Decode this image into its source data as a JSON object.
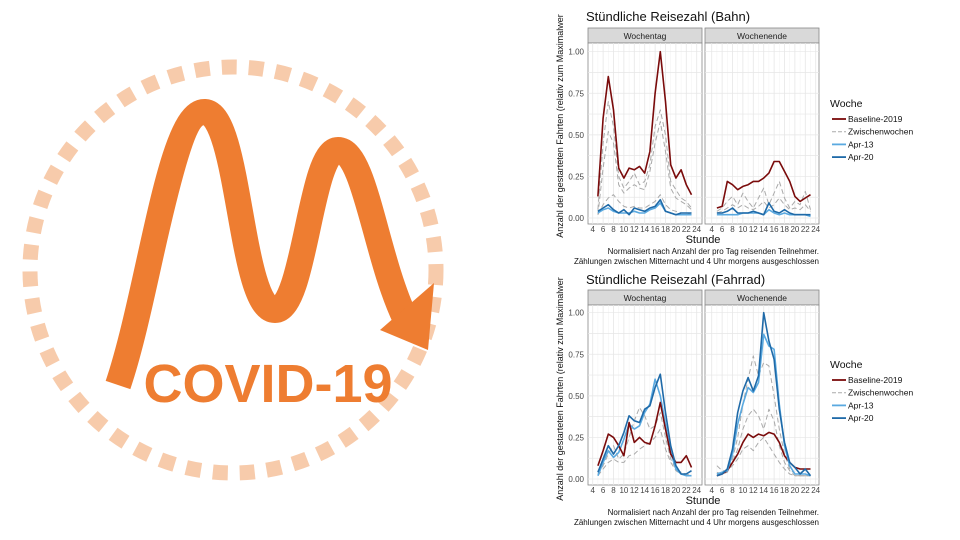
{
  "logo": {
    "text": "COVID-19",
    "arrow_color": "#ee7d31",
    "ring_color": "#f7cbab"
  },
  "legend": {
    "title": "Woche",
    "items": [
      {
        "name": "Baseline-2019",
        "color": "#7a0b0b",
        "dashed": false
      },
      {
        "name": "Zwischenwochen",
        "color": "#aaaaaa",
        "dashed": true
      },
      {
        "name": "Apr-13",
        "color": "#5aa9e0",
        "dashed": false
      },
      {
        "name": "Apr-20",
        "color": "#1f6aa8",
        "dashed": false
      }
    ]
  },
  "chart_data": [
    {
      "type": "line",
      "title": "Stündliche Reisezahl (Bahn)",
      "xlabel": "Stunde",
      "ylabel": "Anzahl der gestarteten Fahrten (relativ zum Maximalwer",
      "caption": [
        "Normalisiert nach Anzahl der pro Tag reisenden Teilnehmer.",
        "Zählungen zwischen Mitternacht und 4 Uhr morgens ausgeschlossen"
      ],
      "x": [
        5,
        6,
        7,
        8,
        9,
        10,
        11,
        12,
        13,
        14,
        15,
        16,
        17,
        18,
        19,
        20,
        21,
        22,
        23
      ],
      "xlim": [
        4,
        24
      ],
      "ylim": [
        0,
        1
      ],
      "xticks": [
        "4",
        "6",
        "8",
        "10",
        "12",
        "14",
        "16",
        "18",
        "20",
        "22",
        "24"
      ],
      "yticks": [
        "0.00",
        "0.25",
        "0.50",
        "0.75",
        "1.00"
      ],
      "facets": [
        {
          "name": "Wochentag",
          "series": [
            {
              "name": "Zwischenwochen",
              "values": [
                0.05,
                0.45,
                0.7,
                0.55,
                0.25,
                0.18,
                0.22,
                0.27,
                0.2,
                0.22,
                0.32,
                0.55,
                0.65,
                0.5,
                0.22,
                0.17,
                0.12,
                0.1,
                0.06
              ]
            },
            {
              "name": "Zwischenwochen",
              "values": [
                0.02,
                0.3,
                0.52,
                0.45,
                0.2,
                0.15,
                0.18,
                0.2,
                0.18,
                0.17,
                0.28,
                0.45,
                0.58,
                0.4,
                0.18,
                0.12,
                0.1,
                0.08,
                0.05
              ]
            },
            {
              "name": "Zwischenwochen",
              "values": [
                0.02,
                0.08,
                0.12,
                0.14,
                0.1,
                0.07,
                0.06,
                0.07,
                0.06,
                0.06,
                0.08,
                0.1,
                0.14,
                0.08,
                0.05,
                0.04,
                0.03,
                0.03,
                0.02
              ]
            },
            {
              "name": "Apr-13",
              "values": [
                0.03,
                0.05,
                0.06,
                0.04,
                0.03,
                0.03,
                0.03,
                0.04,
                0.03,
                0.03,
                0.05,
                0.06,
                0.09,
                0.04,
                0.03,
                0.02,
                0.02,
                0.02,
                0.02
              ]
            },
            {
              "name": "Apr-20",
              "values": [
                0.04,
                0.06,
                0.08,
                0.05,
                0.03,
                0.05,
                0.02,
                0.06,
                0.05,
                0.04,
                0.06,
                0.07,
                0.11,
                0.04,
                0.03,
                0.02,
                0.03,
                0.03,
                0.03
              ]
            },
            {
              "name": "Baseline-2019",
              "values": [
                0.13,
                0.6,
                0.85,
                0.65,
                0.3,
                0.24,
                0.3,
                0.29,
                0.31,
                0.27,
                0.4,
                0.75,
                1.0,
                0.7,
                0.32,
                0.24,
                0.29,
                0.2,
                0.14
              ]
            }
          ]
        },
        {
          "name": "Wochenende",
          "series": [
            {
              "name": "Zwischenwochen",
              "values": [
                0.04,
                0.06,
                0.1,
                0.13,
                0.08,
                0.15,
                0.1,
                0.06,
                0.12,
                0.18,
                0.08,
                0.15,
                0.22,
                0.12,
                0.06,
                0.1,
                0.08,
                0.16,
                0.05
              ]
            },
            {
              "name": "Zwischenwochen",
              "values": [
                0.03,
                0.04,
                0.06,
                0.08,
                0.06,
                0.08,
                0.06,
                0.05,
                0.07,
                0.1,
                0.06,
                0.08,
                0.12,
                0.08,
                0.05,
                0.06,
                0.05,
                0.08,
                0.04
              ]
            },
            {
              "name": "Apr-13",
              "values": [
                0.02,
                0.02,
                0.02,
                0.02,
                0.02,
                0.03,
                0.03,
                0.03,
                0.03,
                0.02,
                0.05,
                0.03,
                0.02,
                0.03,
                0.02,
                0.02,
                0.02,
                0.02,
                0.01
              ]
            },
            {
              "name": "Apr-20",
              "values": [
                0.03,
                0.03,
                0.04,
                0.06,
                0.03,
                0.03,
                0.03,
                0.04,
                0.03,
                0.02,
                0.09,
                0.04,
                0.03,
                0.05,
                0.03,
                0.02,
                0.02,
                0.02,
                0.02
              ]
            },
            {
              "name": "Baseline-2019",
              "values": [
                0.06,
                0.07,
                0.22,
                0.2,
                0.17,
                0.19,
                0.2,
                0.22,
                0.22,
                0.24,
                0.27,
                0.34,
                0.34,
                0.28,
                0.22,
                0.13,
                0.1,
                0.12,
                0.14
              ]
            }
          ]
        }
      ]
    },
    {
      "type": "line",
      "title": "Stündliche Reisezahl (Fahrrad)",
      "xlabel": "Stunde",
      "ylabel": "Anzahl der gestarteten Fahrten (relativ zum Maximalwer",
      "caption": [
        "Normalisiert nach Anzahl der pro Tag reisenden Teilnehmer.",
        "Zählungen zwischen Mitternacht und 4 Uhr morgens ausgeschlossen"
      ],
      "x": [
        5,
        6,
        7,
        8,
        9,
        10,
        11,
        12,
        13,
        14,
        15,
        16,
        17,
        18,
        19,
        20,
        21,
        22,
        23
      ],
      "xlim": [
        4,
        24
      ],
      "ylim": [
        0,
        1
      ],
      "xticks": [
        "4",
        "6",
        "8",
        "10",
        "12",
        "14",
        "16",
        "18",
        "20",
        "22",
        "24"
      ],
      "yticks": [
        "0.00",
        "0.25",
        "0.50",
        "0.75",
        "1.00"
      ],
      "facets": [
        {
          "name": "Wochentag",
          "series": [
            {
              "name": "Zwischenwochen",
              "values": [
                0.03,
                0.08,
                0.15,
                0.2,
                0.12,
                0.15,
                0.25,
                0.35,
                0.43,
                0.38,
                0.3,
                0.32,
                0.4,
                0.25,
                0.12,
                0.06,
                0.04,
                0.03,
                0.02
              ]
            },
            {
              "name": "Zwischenwochen",
              "values": [
                0.02,
                0.06,
                0.1,
                0.12,
                0.1,
                0.1,
                0.14,
                0.15,
                0.18,
                0.2,
                0.22,
                0.25,
                0.3,
                0.18,
                0.1,
                0.05,
                0.03,
                0.02,
                0.02
              ]
            },
            {
              "name": "Apr-13",
              "values": [
                0.02,
                0.1,
                0.17,
                0.13,
                0.16,
                0.24,
                0.33,
                0.3,
                0.32,
                0.4,
                0.45,
                0.6,
                0.5,
                0.33,
                0.16,
                0.06,
                0.03,
                0.02,
                0.02
              ]
            },
            {
              "name": "Baseline-2019",
              "values": [
                0.08,
                0.17,
                0.27,
                0.25,
                0.2,
                0.14,
                0.34,
                0.22,
                0.25,
                0.22,
                0.21,
                0.32,
                0.46,
                0.3,
                0.15,
                0.1,
                0.1,
                0.14,
                0.07
              ]
            },
            {
              "name": "Apr-20",
              "values": [
                0.04,
                0.12,
                0.2,
                0.15,
                0.2,
                0.28,
                0.38,
                0.35,
                0.34,
                0.42,
                0.44,
                0.55,
                0.63,
                0.4,
                0.2,
                0.08,
                0.03,
                0.03,
                0.05
              ]
            }
          ]
        },
        {
          "name": "Wochenende",
          "series": [
            {
              "name": "Zwischenwochen",
              "values": [
                0.08,
                0.05,
                0.05,
                0.12,
                0.25,
                0.45,
                0.6,
                0.74,
                0.62,
                0.7,
                0.68,
                0.5,
                0.3,
                0.15,
                0.06,
                0.03,
                0.02,
                0.02,
                0.02
              ]
            },
            {
              "name": "Zwischenwochen",
              "values": [
                0.03,
                0.03,
                0.04,
                0.1,
                0.18,
                0.3,
                0.38,
                0.42,
                0.38,
                0.3,
                0.42,
                0.35,
                0.2,
                0.1,
                0.05,
                0.02,
                0.02,
                0.02,
                0.02
              ]
            },
            {
              "name": "Zwischenwochen",
              "values": [
                0.04,
                0.03,
                0.05,
                0.08,
                0.12,
                0.18,
                0.2,
                0.17,
                0.22,
                0.25,
                0.2,
                0.15,
                0.1,
                0.06,
                0.03,
                0.02,
                0.02,
                0.02,
                0.02
              ]
            },
            {
              "name": "Baseline-2019",
              "values": [
                0.02,
                0.03,
                0.05,
                0.1,
                0.15,
                0.22,
                0.27,
                0.25,
                0.27,
                0.26,
                0.28,
                0.27,
                0.22,
                0.14,
                0.1,
                0.07,
                0.06,
                0.06,
                0.06
              ]
            },
            {
              "name": "Apr-13",
              "values": [
                0.03,
                0.04,
                0.05,
                0.15,
                0.33,
                0.45,
                0.55,
                0.52,
                0.58,
                0.87,
                0.8,
                0.78,
                0.45,
                0.2,
                0.08,
                0.03,
                0.03,
                0.03,
                0.02
              ]
            },
            {
              "name": "Apr-20",
              "values": [
                0.02,
                0.03,
                0.06,
                0.18,
                0.4,
                0.53,
                0.61,
                0.53,
                0.62,
                1.0,
                0.83,
                0.72,
                0.42,
                0.22,
                0.1,
                0.07,
                0.03,
                0.06,
                0.02
              ]
            }
          ]
        }
      ]
    }
  ]
}
